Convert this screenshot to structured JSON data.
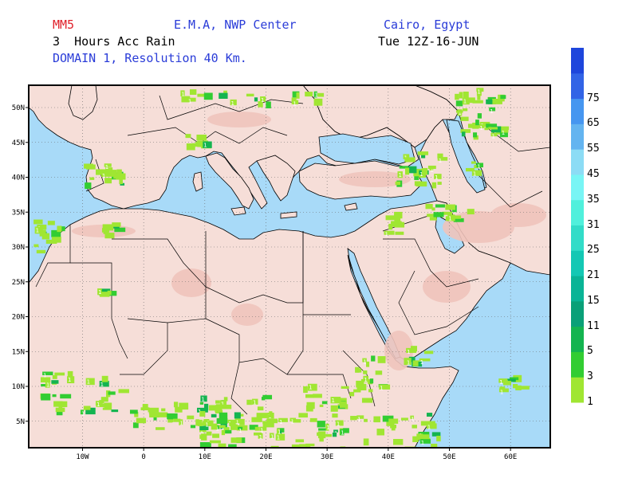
{
  "header": {
    "model": "MM5",
    "center": "E.M.A, NWP Center",
    "location": "Cairo, Egypt",
    "product": "3  Hours Acc Rain",
    "valid_time": "Tue 12Z-16-JUN",
    "domain": "DOMAIN 1, Resolution 40 Km."
  },
  "axes": {
    "lat_labels": [
      "50N",
      "45N",
      "40N",
      "35N",
      "30N",
      "25N",
      "20N",
      "15N",
      "10N",
      "5N"
    ],
    "lat_values": [
      50,
      45,
      40,
      35,
      30,
      25,
      20,
      15,
      10,
      5
    ],
    "lon_labels": [
      "10W",
      "0",
      "10E",
      "20E",
      "30E",
      "40E",
      "50E",
      "60E"
    ],
    "lon_values": [
      -10,
      0,
      10,
      20,
      30,
      40,
      50,
      60
    ],
    "lon_range": [
      -18.8,
      66.5
    ],
    "lat_range": [
      1.2,
      53.2
    ]
  },
  "colorbar": {
    "levels": [
      "1",
      "3",
      "5",
      "11",
      "15",
      "21",
      "25",
      "31",
      "35",
      "45",
      "55",
      "65",
      "75"
    ],
    "colors": [
      "#a0e632",
      "#32cd32",
      "#14b450",
      "#0aa078",
      "#0ab496",
      "#14c8b4",
      "#32dcc8",
      "#50f0dc",
      "#78f5f5",
      "#8cdcf5",
      "#64b4f0",
      "#4696f0",
      "#3264e6",
      "#1e46dc"
    ]
  },
  "colors": {
    "sea": "#a8daf8",
    "land": "#f6ded8",
    "land_high": "#f0c4bc",
    "rain_light": "#a0e632",
    "rain_mid": "#32cd32"
  }
}
